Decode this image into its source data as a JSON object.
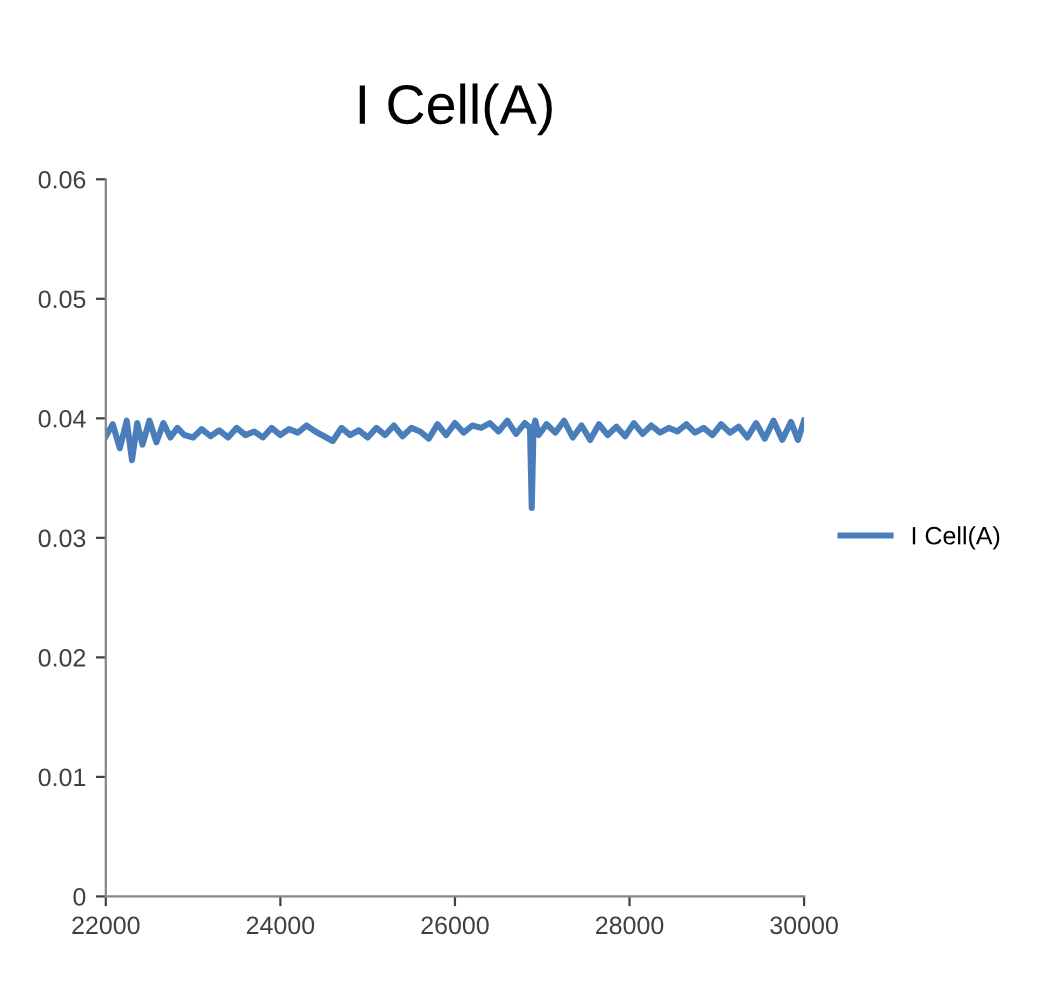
{
  "chart_data": {
    "type": "line",
    "title": "I Cell(A)",
    "xlim": [
      22000,
      30000
    ],
    "xticks": [
      22000,
      24000,
      26000,
      28000,
      30000
    ],
    "ylim": [
      0,
      0.06
    ],
    "yticks": [
      0,
      0.01,
      0.02,
      0.03,
      0.04,
      0.05,
      0.06
    ],
    "grid": false,
    "legend": "right",
    "marker": "none",
    "line_style": "solid",
    "series": [
      {
        "name": "I Cell(A)",
        "color": "#4a7ebb",
        "x": [
          22000,
          22080,
          22160,
          22240,
          22300,
          22360,
          22420,
          22500,
          22580,
          22660,
          22740,
          22820,
          22900,
          23000,
          23100,
          23200,
          23300,
          23400,
          23500,
          23600,
          23700,
          23800,
          23900,
          24000,
          24100,
          24200,
          24300,
          24400,
          24500,
          24600,
          24700,
          24800,
          24900,
          25000,
          25100,
          25200,
          25300,
          25400,
          25500,
          25600,
          25700,
          25800,
          25900,
          26000,
          26100,
          26200,
          26300,
          26400,
          26500,
          26600,
          26700,
          26800,
          26860,
          26880,
          26900,
          26920,
          26960,
          27050,
          27150,
          27250,
          27350,
          27450,
          27550,
          27650,
          27750,
          27850,
          27950,
          28050,
          28150,
          28250,
          28350,
          28450,
          28550,
          28650,
          28750,
          28850,
          28950,
          29050,
          29150,
          29250,
          29350,
          29450,
          29550,
          29650,
          29750,
          29850,
          29930,
          30000
        ],
        "values": [
          0.0385,
          0.0395,
          0.0375,
          0.0398,
          0.0365,
          0.0396,
          0.0378,
          0.0398,
          0.038,
          0.0396,
          0.0384,
          0.0392,
          0.0386,
          0.0384,
          0.0391,
          0.0385,
          0.039,
          0.0384,
          0.0392,
          0.0386,
          0.0389,
          0.0384,
          0.0392,
          0.0386,
          0.0391,
          0.0388,
          0.0394,
          0.0389,
          0.0385,
          0.0381,
          0.0392,
          0.0386,
          0.039,
          0.0384,
          0.0392,
          0.0386,
          0.0394,
          0.0385,
          0.0392,
          0.0389,
          0.0383,
          0.0395,
          0.0386,
          0.0396,
          0.0388,
          0.0394,
          0.0392,
          0.0396,
          0.0389,
          0.0398,
          0.0387,
          0.0396,
          0.0392,
          0.0325,
          0.0392,
          0.0398,
          0.0386,
          0.0395,
          0.0388,
          0.0398,
          0.0384,
          0.0394,
          0.0382,
          0.0395,
          0.0386,
          0.0393,
          0.0385,
          0.0396,
          0.0387,
          0.0394,
          0.0388,
          0.0392,
          0.0389,
          0.0395,
          0.0388,
          0.0392,
          0.0386,
          0.0395,
          0.0388,
          0.0393,
          0.0384,
          0.0396,
          0.0383,
          0.0398,
          0.0382,
          0.0397,
          0.0382,
          0.0398
        ]
      }
    ]
  }
}
